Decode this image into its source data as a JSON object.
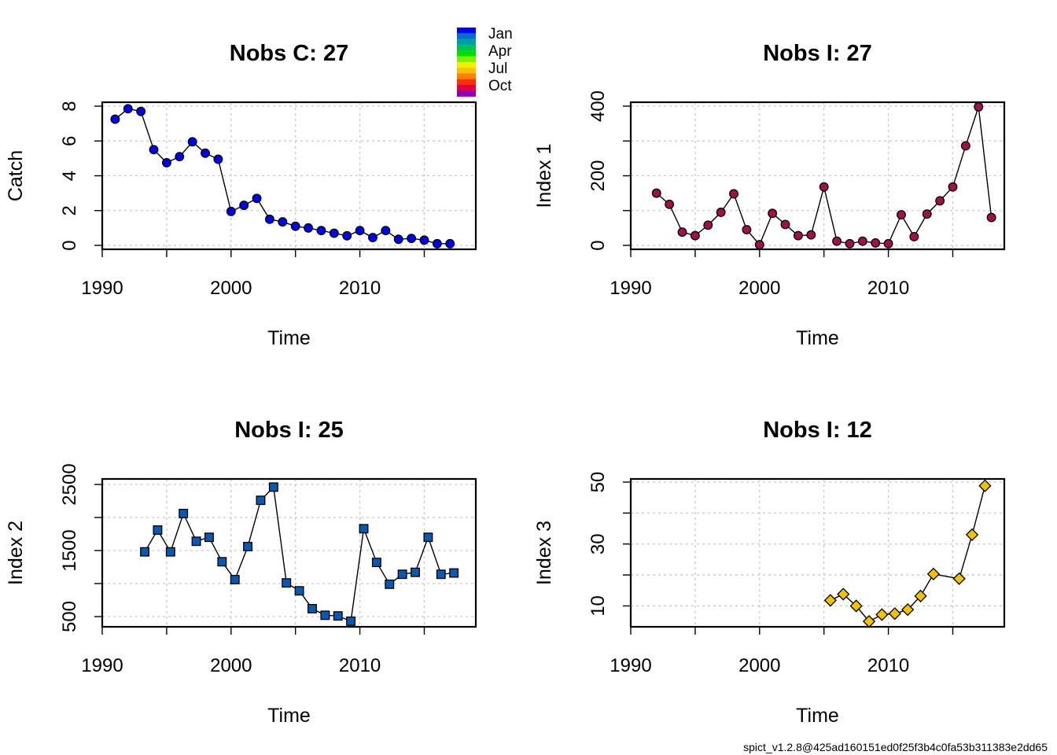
{
  "legend": {
    "months": [
      "Jan",
      "Apr",
      "Jul",
      "Oct"
    ],
    "colors": [
      "#0000ff",
      "#006fcc",
      "#00a0a0",
      "#00c060",
      "#00e000",
      "#80f000",
      "#f0f000",
      "#ffc000",
      "#ff8000",
      "#ff3000",
      "#e00040",
      "#9000b0"
    ]
  },
  "footer": "spict_v1.2.8@425ad160151ed0f25f3b4c0fa53b311383e2dd65",
  "chart_data": [
    {
      "type": "line",
      "title": "Nobs C: 27",
      "xlabel": "Time",
      "ylabel": "Catch",
      "xlim": [
        1990,
        2019
      ],
      "ylim": [
        0,
        8
      ],
      "xticks": [
        1990,
        2000,
        2010
      ],
      "xticks_minor": [
        1995,
        2005,
        2015
      ],
      "yticks": [
        0,
        2,
        4,
        6,
        8
      ],
      "grid": true,
      "marker": "circle",
      "marker_color": "#0000ee",
      "x": [
        1991,
        1992,
        1993,
        1994,
        1995,
        1996,
        1997,
        1998,
        1999,
        2000,
        2001,
        2002,
        2003,
        2004,
        2005,
        2006,
        2007,
        2008,
        2009,
        2010,
        2011,
        2012,
        2013,
        2014,
        2015,
        2016,
        2017
      ],
      "values": [
        7.25,
        7.85,
        7.7,
        5.5,
        4.75,
        5.1,
        5.95,
        5.3,
        4.95,
        1.95,
        2.3,
        2.7,
        1.5,
        1.35,
        1.1,
        1.0,
        0.85,
        0.7,
        0.55,
        0.85,
        0.45,
        0.85,
        0.35,
        0.4,
        0.3,
        0.1,
        0.1
      ]
    },
    {
      "type": "line",
      "title": "Nobs I: 27",
      "xlabel": "Time",
      "ylabel": "Index 1",
      "xlim": [
        1990,
        2019
      ],
      "ylim": [
        0,
        400
      ],
      "xticks": [
        1990,
        2000,
        2010
      ],
      "xticks_minor": [
        1995,
        2005,
        2015
      ],
      "yticks": [
        0,
        200,
        400
      ],
      "yticks_minor": [
        100,
        300
      ],
      "grid": true,
      "marker": "circle",
      "marker_color": "#a0104a",
      "x": [
        1992,
        1993,
        1994,
        1995,
        1996,
        1997,
        1998,
        1999,
        2000,
        2001,
        2002,
        2003,
        2004,
        2005,
        2006,
        2007,
        2008,
        2009,
        2010,
        2011,
        2012,
        2013,
        2014,
        2015,
        2016,
        2017,
        2018
      ],
      "values": [
        150,
        118,
        38,
        28,
        58,
        95,
        148,
        45,
        2,
        92,
        60,
        28,
        30,
        168,
        12,
        5,
        12,
        7,
        5,
        88,
        25,
        90,
        128,
        168,
        286,
        398,
        80
      ]
    },
    {
      "type": "line",
      "title": "Nobs I: 25",
      "xlabel": "Time",
      "ylabel": "Index 2",
      "xlim": [
        1990,
        2019
      ],
      "ylim": [
        500,
        2500
      ],
      "xticks": [
        1990,
        2000,
        2010
      ],
      "xticks_minor": [
        1995,
        2005,
        2015
      ],
      "yticks": [
        500,
        1500,
        2500
      ],
      "yticks_minor": [
        1000,
        2000
      ],
      "grid": true,
      "marker": "square",
      "marker_color": "#0c58b0",
      "x": [
        1993.3,
        1994.3,
        1995.3,
        1996.3,
        1997.3,
        1998.3,
        1999.3,
        2000.3,
        2001.3,
        2002.3,
        2003.3,
        2004.3,
        2005.3,
        2006.3,
        2007.3,
        2008.3,
        2009.3,
        2010.3,
        2011.3,
        2012.3,
        2013.3,
        2014.3,
        2015.3,
        2016.3,
        2017.3
      ],
      "values": [
        1480,
        1810,
        1480,
        2060,
        1640,
        1700,
        1330,
        1060,
        1560,
        2260,
        2460,
        1010,
        890,
        620,
        520,
        510,
        430,
        1830,
        1320,
        990,
        1140,
        1170,
        1700,
        1140,
        1160
      ]
    },
    {
      "type": "line",
      "title": "Nobs I: 12",
      "xlabel": "Time",
      "ylabel": "Index 3",
      "xlim": [
        1990,
        2019
      ],
      "ylim": [
        3,
        50
      ],
      "xticks": [
        1990,
        2000,
        2010
      ],
      "xticks_minor": [
        1995,
        2005,
        2015
      ],
      "yticks": [
        10,
        30,
        50
      ],
      "yticks_minor": [
        20,
        40
      ],
      "grid": true,
      "marker": "diamond",
      "marker_color": "#f2c200",
      "x": [
        2005.5,
        2006.5,
        2007.5,
        2008.5,
        2009.5,
        2010.5,
        2011.5,
        2012.5,
        2013.5,
        2015.5,
        2016.5,
        2017.5
      ],
      "values": [
        11.8,
        13.8,
        10.0,
        5.0,
        7.2,
        7.5,
        8.8,
        13.2,
        20.3,
        18.8,
        33.0,
        48.8
      ]
    }
  ]
}
